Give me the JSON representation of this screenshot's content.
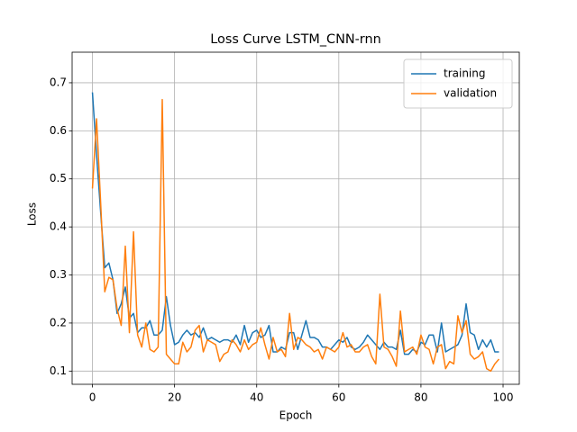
{
  "chart_data": {
    "type": "line",
    "title": "Loss Curve LSTM_CNN-rnn",
    "x_label": "Epoch",
    "y_label": "Loss",
    "x": [
      0,
      1,
      2,
      3,
      4,
      5,
      6,
      7,
      8,
      9,
      10,
      11,
      12,
      13,
      14,
      15,
      16,
      17,
      18,
      19,
      20,
      21,
      22,
      23,
      24,
      25,
      26,
      27,
      28,
      29,
      30,
      31,
      32,
      33,
      34,
      35,
      36,
      37,
      38,
      39,
      40,
      41,
      42,
      43,
      44,
      45,
      46,
      47,
      48,
      49,
      50,
      51,
      52,
      53,
      54,
      55,
      56,
      57,
      58,
      59,
      60,
      61,
      62,
      63,
      64,
      65,
      66,
      67,
      68,
      69,
      70,
      71,
      72,
      73,
      74,
      75,
      76,
      77,
      78,
      79,
      80,
      81,
      82,
      83,
      84,
      85,
      86,
      87,
      88,
      89,
      90,
      91,
      92,
      93,
      94,
      95,
      96,
      97,
      98,
      99
    ],
    "series": [
      {
        "name": "training",
        "color": "#1f77b4",
        "values": [
          0.68,
          0.55,
          0.43,
          0.315,
          0.325,
          0.29,
          0.22,
          0.24,
          0.275,
          0.21,
          0.22,
          0.18,
          0.19,
          0.19,
          0.205,
          0.175,
          0.175,
          0.185,
          0.255,
          0.195,
          0.155,
          0.16,
          0.175,
          0.185,
          0.175,
          0.18,
          0.17,
          0.19,
          0.165,
          0.17,
          0.165,
          0.16,
          0.165,
          0.165,
          0.16,
          0.175,
          0.155,
          0.195,
          0.16,
          0.18,
          0.185,
          0.17,
          0.175,
          0.195,
          0.14,
          0.14,
          0.15,
          0.145,
          0.18,
          0.18,
          0.145,
          0.175,
          0.205,
          0.17,
          0.17,
          0.165,
          0.15,
          0.15,
          0.145,
          0.155,
          0.165,
          0.16,
          0.17,
          0.15,
          0.145,
          0.15,
          0.16,
          0.175,
          0.165,
          0.155,
          0.145,
          0.16,
          0.15,
          0.15,
          0.145,
          0.185,
          0.135,
          0.135,
          0.145,
          0.14,
          0.16,
          0.155,
          0.175,
          0.175,
          0.14,
          0.2,
          0.14,
          0.145,
          0.15,
          0.155,
          0.175,
          0.24,
          0.18,
          0.175,
          0.145,
          0.165,
          0.15,
          0.165,
          0.14,
          0.14
        ]
      },
      {
        "name": "validation",
        "color": "#ff7f0e",
        "values": [
          0.48,
          0.625,
          0.45,
          0.265,
          0.295,
          0.29,
          0.23,
          0.195,
          0.36,
          0.18,
          0.39,
          0.175,
          0.15,
          0.2,
          0.145,
          0.14,
          0.15,
          0.665,
          0.135,
          0.125,
          0.115,
          0.115,
          0.16,
          0.14,
          0.15,
          0.185,
          0.195,
          0.14,
          0.165,
          0.16,
          0.155,
          0.12,
          0.135,
          0.14,
          0.165,
          0.155,
          0.14,
          0.165,
          0.145,
          0.155,
          0.16,
          0.19,
          0.155,
          0.125,
          0.17,
          0.14,
          0.145,
          0.13,
          0.22,
          0.145,
          0.17,
          0.165,
          0.155,
          0.15,
          0.14,
          0.145,
          0.125,
          0.15,
          0.145,
          0.14,
          0.15,
          0.18,
          0.15,
          0.155,
          0.14,
          0.14,
          0.15,
          0.155,
          0.13,
          0.115,
          0.26,
          0.15,
          0.145,
          0.13,
          0.11,
          0.225,
          0.14,
          0.145,
          0.15,
          0.135,
          0.175,
          0.15,
          0.145,
          0.115,
          0.15,
          0.155,
          0.105,
          0.12,
          0.115,
          0.215,
          0.18,
          0.205,
          0.135,
          0.125,
          0.13,
          0.14,
          0.105,
          0.1,
          0.115,
          0.125
        ]
      }
    ],
    "xlim": [
      -4.95,
      103.95
    ],
    "ylim": [
      0.0725,
      0.7636
    ],
    "xticks": [
      0,
      20,
      40,
      60,
      80,
      100
    ],
    "yticks": [
      0.1,
      0.2,
      0.3,
      0.4,
      0.5,
      0.6,
      0.7
    ],
    "grid": true,
    "legend": "upper right"
  }
}
